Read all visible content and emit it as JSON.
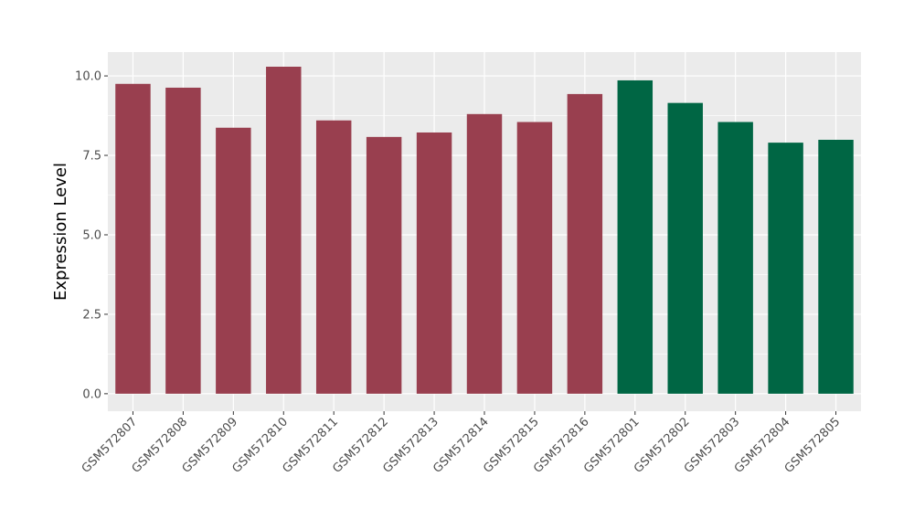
{
  "chart_data": {
    "type": "bar",
    "ylabel": "Expression Level",
    "xlabel": "",
    "ylim": [
      -0.55,
      10.75
    ],
    "yticks": [
      0.0,
      2.5,
      5.0,
      7.5,
      10.0
    ],
    "ytick_labels": [
      "0.0",
      "2.5",
      "5.0",
      "7.5",
      "10.0"
    ],
    "grid": true,
    "colors": {
      "group_a": "#993f4f",
      "group_b": "#006644",
      "panel": "#ebebeb",
      "gridline": "#ffffff"
    },
    "bars": [
      {
        "category": "GSM572807",
        "value": 9.75,
        "group": "group_a"
      },
      {
        "category": "GSM572808",
        "value": 9.63,
        "group": "group_a"
      },
      {
        "category": "GSM572809",
        "value": 8.37,
        "group": "group_a"
      },
      {
        "category": "GSM572810",
        "value": 10.29,
        "group": "group_a"
      },
      {
        "category": "GSM572811",
        "value": 8.6,
        "group": "group_a"
      },
      {
        "category": "GSM572812",
        "value": 8.08,
        "group": "group_a"
      },
      {
        "category": "GSM572813",
        "value": 8.22,
        "group": "group_a"
      },
      {
        "category": "GSM572814",
        "value": 8.8,
        "group": "group_a"
      },
      {
        "category": "GSM572815",
        "value": 8.55,
        "group": "group_a"
      },
      {
        "category": "GSM572816",
        "value": 9.43,
        "group": "group_a"
      },
      {
        "category": "GSM572801",
        "value": 9.86,
        "group": "group_b"
      },
      {
        "category": "GSM572802",
        "value": 9.15,
        "group": "group_b"
      },
      {
        "category": "GSM572803",
        "value": 8.55,
        "group": "group_b"
      },
      {
        "category": "GSM572804",
        "value": 7.9,
        "group": "group_b"
      },
      {
        "category": "GSM572805",
        "value": 7.99,
        "group": "group_b"
      }
    ]
  }
}
